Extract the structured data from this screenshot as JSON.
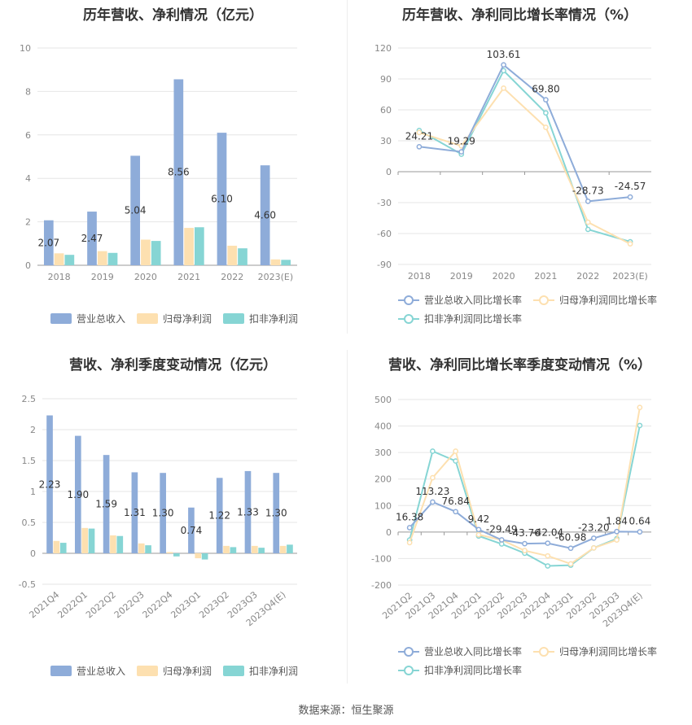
{
  "source_text": "数据来源：恒生聚源",
  "chart_data": [
    {
      "id": "annual_bar",
      "type": "bar",
      "title": "历年营收、净利情况（亿元）",
      "categories": [
        "2018",
        "2019",
        "2020",
        "2021",
        "2022",
        "2023(E)"
      ],
      "yticks": [
        "0",
        "2",
        "4",
        "6",
        "8",
        "10"
      ],
      "ylim": [
        0,
        10
      ],
      "grid": true,
      "legend_position": "bottom",
      "series": [
        {
          "name": "营业总收入",
          "color": "#8eacd9",
          "values": [
            2.07,
            2.47,
            5.04,
            8.56,
            6.1,
            4.6
          ],
          "labels": [
            "2.07",
            "2.47",
            "5.04",
            "8.56",
            "6.10",
            "4.60"
          ]
        },
        {
          "name": "归母净利润",
          "color": "#fde0b0",
          "values": [
            0.55,
            0.65,
            1.18,
            1.72,
            0.9,
            0.27
          ]
        },
        {
          "name": "扣非净利润",
          "color": "#86d5d4",
          "values": [
            0.48,
            0.57,
            1.12,
            1.75,
            0.78,
            0.25
          ]
        }
      ]
    },
    {
      "id": "annual_line",
      "type": "line",
      "title": "历年营收、净利同比增长率情况（%）",
      "categories": [
        "2018",
        "2019",
        "2020",
        "2021",
        "2022",
        "2023(E)"
      ],
      "yticks": [
        "120",
        "90",
        "60",
        "30",
        "0",
        "-30",
        "-60",
        "-90"
      ],
      "ylim": [
        -90,
        120
      ],
      "grid": true,
      "legend_position": "bottom",
      "series": [
        {
          "name": "营业总收入同比增长率",
          "color": "#8eacd9",
          "values": [
            24.21,
            19.29,
            103.61,
            69.8,
            -28.73,
            -24.57
          ],
          "labels": [
            "24.21",
            "19.29",
            "103.61",
            "69.80",
            "-28.73",
            "-24.57"
          ]
        },
        {
          "name": "归母净利润同比增长率",
          "color": "#fde0b0",
          "values": [
            38.0,
            25.0,
            81.0,
            43.0,
            -49.0,
            -70.0
          ]
        },
        {
          "name": "扣非净利润同比增长率",
          "color": "#86d5d4",
          "values": [
            40.0,
            17.0,
            98.0,
            57.0,
            -56.0,
            -68.0
          ]
        }
      ]
    },
    {
      "id": "quarter_bar",
      "type": "bar",
      "title": "营收、净利季度变动情况（亿元）",
      "categories": [
        "2021Q4",
        "2022Q1",
        "2022Q2",
        "2022Q3",
        "2022Q4",
        "2023Q1",
        "2023Q2",
        "2023Q3",
        "2023Q4(E)"
      ],
      "yticks": [
        "2.5",
        "2",
        "1.5",
        "1",
        "0.5",
        "0",
        "-0.5"
      ],
      "ylim": [
        -0.5,
        2.5
      ],
      "grid": true,
      "legend_position": "bottom",
      "series": [
        {
          "name": "营业总收入",
          "color": "#8eacd9",
          "values": [
            2.23,
            1.9,
            1.59,
            1.31,
            1.3,
            0.74,
            1.22,
            1.33,
            1.3
          ],
          "labels": [
            "2.23",
            "1.90",
            "1.59",
            "1.31",
            "1.30",
            "0.74",
            "1.22",
            "1.33",
            "1.30"
          ]
        },
        {
          "name": "归母净利润",
          "color": "#fde0b0",
          "values": [
            0.2,
            0.41,
            0.29,
            0.16,
            0.02,
            -0.08,
            0.12,
            0.12,
            0.12
          ]
        },
        {
          "name": "扣非净利润",
          "color": "#86d5d4",
          "values": [
            0.17,
            0.4,
            0.28,
            0.13,
            -0.05,
            -0.1,
            0.1,
            0.09,
            0.14
          ]
        }
      ]
    },
    {
      "id": "quarter_line",
      "type": "line",
      "title": "营收、净利同比增长率季度变动情况（%）",
      "categories": [
        "2021Q2",
        "2021Q3",
        "2021Q4",
        "2022Q1",
        "2022Q2",
        "2022Q3",
        "2022Q4",
        "2023Q1",
        "2023Q2",
        "2023Q3",
        "2023Q4(E)"
      ],
      "yticks": [
        "500",
        "400",
        "300",
        "200",
        "100",
        "0",
        "-100",
        "-200"
      ],
      "ylim": [
        -200,
        500
      ],
      "grid": true,
      "legend_position": "bottom",
      "series": [
        {
          "name": "营业总收入同比增长率",
          "color": "#8eacd9",
          "values": [
            16.38,
            113.23,
            76.84,
            9.42,
            -29.49,
            -43.76,
            -42.04,
            -60.98,
            -23.2,
            1.84,
            0.64
          ],
          "labels": [
            "16.38",
            "113.23",
            "76.84",
            "9.42",
            "-29.49",
            "-43.76",
            "-42.04",
            "-60.98",
            "-23.20",
            "1.84",
            "0.64"
          ]
        },
        {
          "name": "归母净利润同比增长率",
          "color": "#fde0b0",
          "values": [
            -40,
            205,
            305,
            -10,
            -30,
            -70,
            -90,
            -120,
            -60,
            -30,
            470
          ]
        },
        {
          "name": "扣非净利润同比增长率",
          "color": "#86d5d4",
          "values": [
            -30,
            305,
            268,
            -15,
            -45,
            -80,
            -128,
            -125,
            -60,
            -25,
            402
          ]
        }
      ]
    }
  ]
}
